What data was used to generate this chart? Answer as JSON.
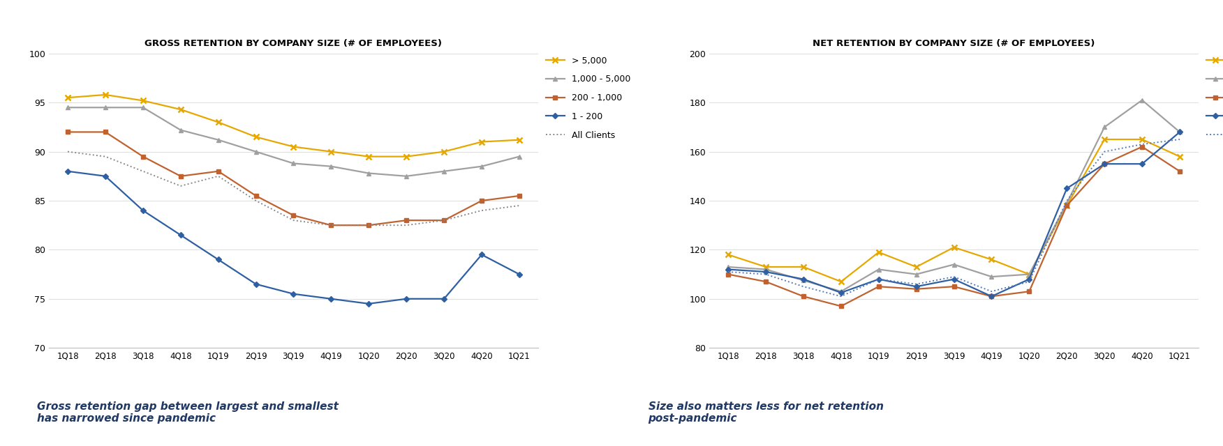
{
  "x_labels": [
    "1Q18",
    "2Q18",
    "3Q18",
    "4Q18",
    "1Q19",
    "2Q19",
    "3Q19",
    "4Q19",
    "1Q20",
    "2Q20",
    "3Q20",
    "4Q20",
    "1Q21"
  ],
  "gross": {
    "gt5000": [
      95.5,
      95.8,
      95.2,
      94.3,
      93.0,
      91.5,
      90.5,
      90.0,
      89.5,
      89.5,
      90.0,
      91.0,
      91.2
    ],
    "k1_5": [
      94.5,
      94.5,
      94.5,
      92.2,
      91.2,
      90.0,
      88.8,
      88.5,
      87.8,
      87.5,
      88.0,
      88.5,
      89.5
    ],
    "h200_1k": [
      92.0,
      92.0,
      89.5,
      87.5,
      88.0,
      85.5,
      83.5,
      82.5,
      82.5,
      83.0,
      83.0,
      85.0,
      85.5
    ],
    "all_clients": [
      90.0,
      89.5,
      88.0,
      86.5,
      87.5,
      85.0,
      83.0,
      82.5,
      82.5,
      82.5,
      83.0,
      84.0,
      84.5
    ],
    "s1_200": [
      88.0,
      87.5,
      84.0,
      81.5,
      79.0,
      76.5,
      75.5,
      75.0,
      74.5,
      75.0,
      75.0,
      79.5,
      77.5
    ]
  },
  "net": {
    "gt5000": [
      118.0,
      113.0,
      113.0,
      107.0,
      119.0,
      113.0,
      121.0,
      116.0,
      110.0,
      138.0,
      165.0,
      165.0,
      158.0
    ],
    "k1_5": [
      113.0,
      112.0,
      107.5,
      103.0,
      112.0,
      110.0,
      114.0,
      109.0,
      110.0,
      139.0,
      170.0,
      181.0,
      168.0
    ],
    "h200_1k": [
      110.0,
      107.0,
      101.0,
      97.0,
      105.0,
      104.0,
      105.0,
      101.0,
      103.0,
      138.0,
      155.0,
      162.0,
      152.0
    ],
    "all_clients": [
      111.0,
      110.0,
      105.0,
      101.0,
      108.0,
      106.0,
      109.0,
      103.0,
      107.0,
      140.0,
      160.0,
      163.0,
      165.0
    ],
    "s1_200": [
      112.0,
      111.0,
      108.0,
      102.5,
      108.0,
      105.0,
      108.0,
      101.0,
      108.0,
      145.0,
      155.0,
      155.0,
      168.0
    ]
  },
  "colors": {
    "gt5000": "#E6A800",
    "k1_5": "#A0A0A0",
    "h200_1k": "#C0622F",
    "s1_200": "#2E5FA3",
    "all_clients_gross": "#888888",
    "all_clients_net": "#5577BB"
  },
  "gross_title": "GROSS RETENTION BY COMPANY SIZE (# OF EMPLOYEES)",
  "net_title": "NET RETENTION BY COMPANY SIZE (# OF EMPLOYEES)",
  "gross_ylim": [
    70,
    100
  ],
  "net_ylim": [
    80,
    200
  ],
  "gross_yticks": [
    70,
    75,
    80,
    85,
    90,
    95,
    100
  ],
  "net_yticks": [
    80,
    100,
    120,
    140,
    160,
    180,
    200
  ],
  "subtitle_left": "Gross retention gap between largest and smallest\nhas narrowed since pandemic",
  "subtitle_right": "Size also matters less for net retention\npost-pandemic",
  "subtitle_color": "#1F3864",
  "bg_color": "#FFFFFF"
}
